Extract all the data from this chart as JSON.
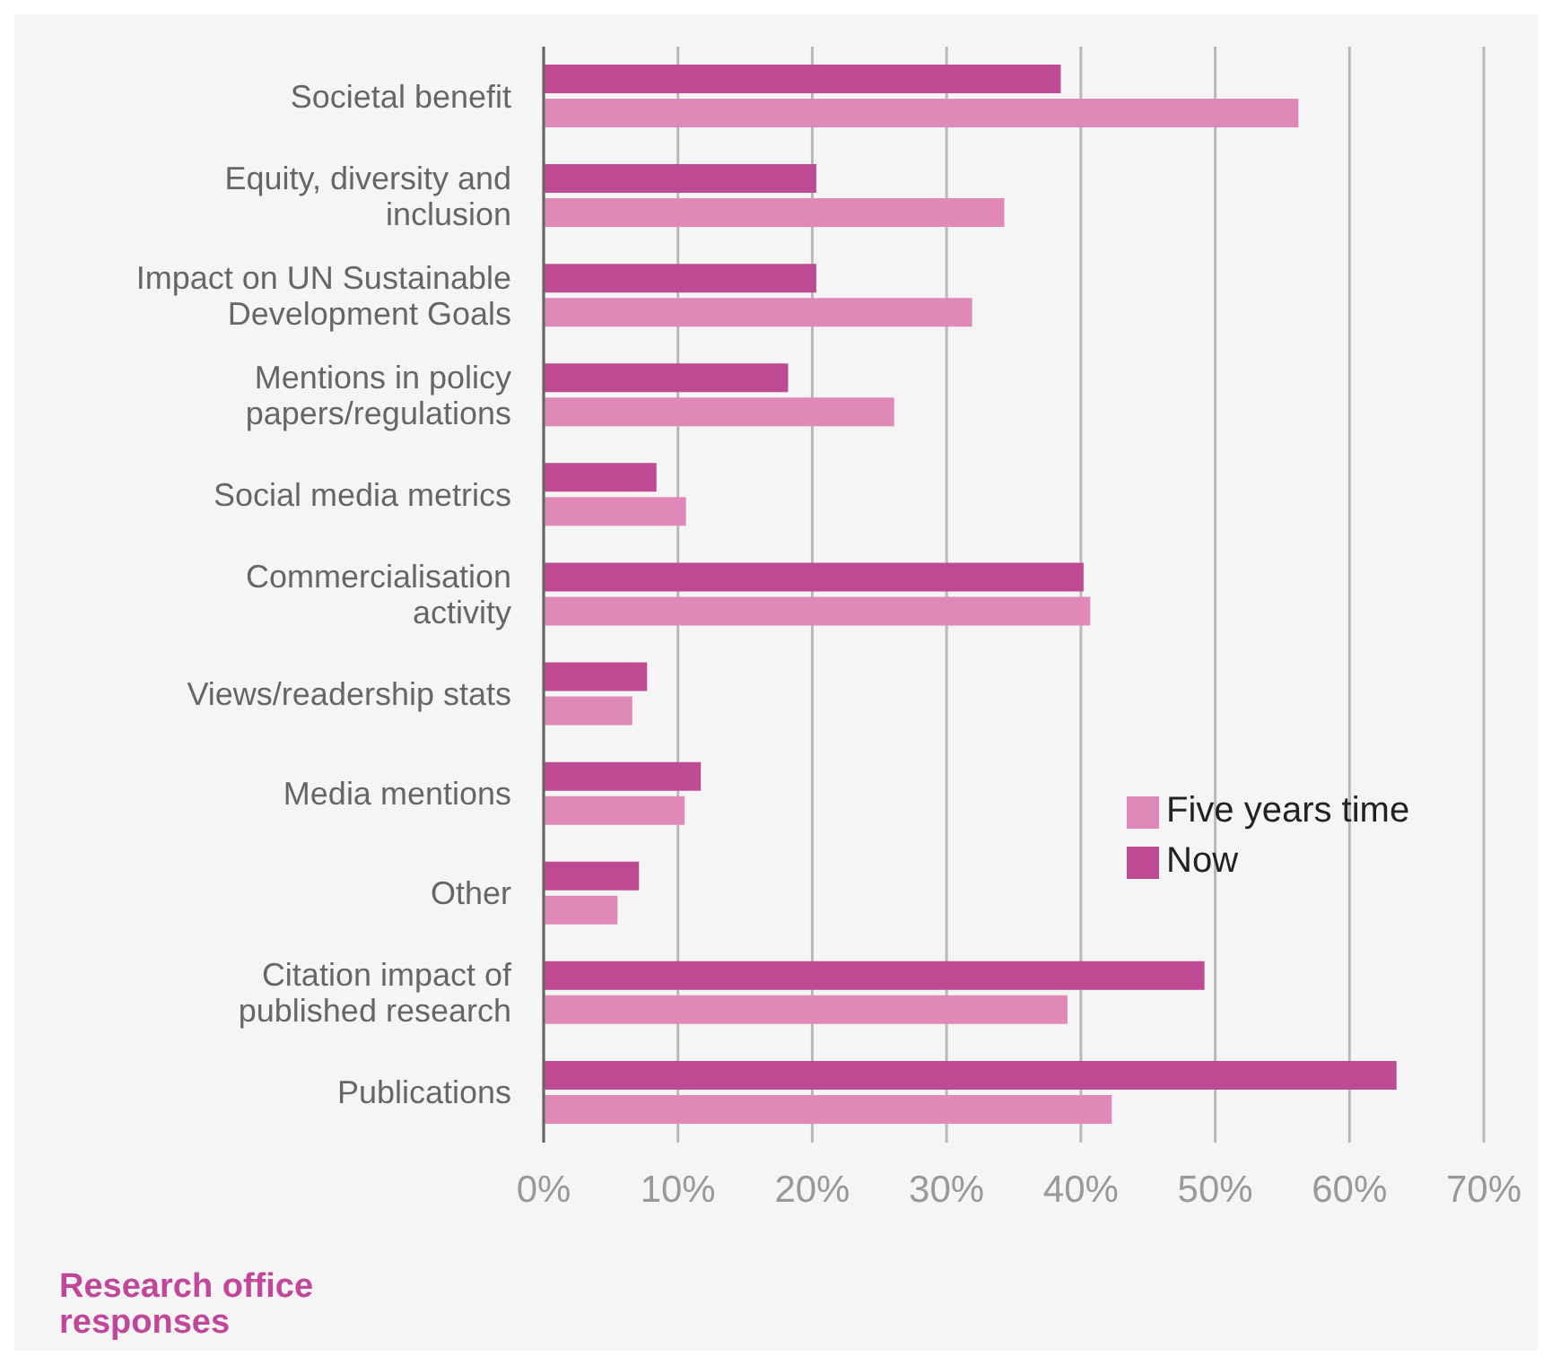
{
  "chart_data": {
    "type": "bar",
    "orientation": "horizontal",
    "xlabel": "Research office responses",
    "categories": [
      "Societal benefit",
      "Equity, diversity and inclusion",
      "Impact on UN Sustainable Development Goals",
      "Mentions in policy papers/regulations",
      "Social media metrics",
      "Commercialisation activity",
      "Views/readership stats",
      "Media mentions",
      "Other",
      "Citation impact of published research",
      "Publications"
    ],
    "series": [
      {
        "name": "Now",
        "color": "#bf4a94",
        "values": [
          38.5,
          20.3,
          20.3,
          18.2,
          8.4,
          40.2,
          7.7,
          11.7,
          7.1,
          49.2,
          63.5
        ]
      },
      {
        "name": "Five years time",
        "color": "#e088b8",
        "values": [
          56.2,
          34.3,
          31.9,
          26.1,
          10.6,
          40.7,
          6.6,
          10.5,
          5.5,
          39.0,
          42.3
        ]
      }
    ],
    "xlim": [
      0,
      70
    ],
    "xticks": [
      {
        "value": 0,
        "label": "0%"
      },
      {
        "value": 10,
        "label": "10%"
      },
      {
        "value": 20,
        "label": "20%"
      },
      {
        "value": 30,
        "label": "30%"
      },
      {
        "value": 40,
        "label": "40%"
      },
      {
        "value": 50,
        "label": "50%"
      },
      {
        "value": 60,
        "label": "60%"
      },
      {
        "value": 70,
        "label": "70%"
      }
    ],
    "grid": "x",
    "legend": "right"
  }
}
